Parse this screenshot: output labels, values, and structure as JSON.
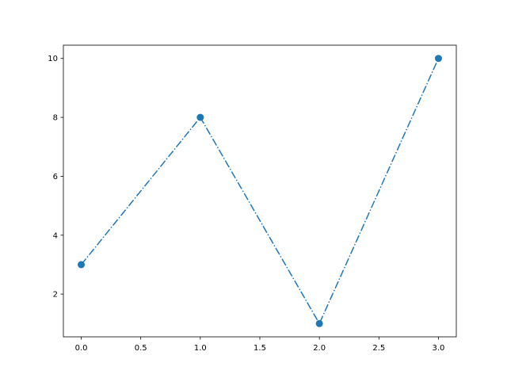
{
  "chart_data": {
    "type": "line",
    "title": "",
    "xlabel": "",
    "ylabel": "",
    "x": [
      0,
      1,
      2,
      3
    ],
    "series": [
      {
        "values": [
          3,
          8,
          1,
          10
        ],
        "color": "#1f77b4",
        "linestyle": "dashdot",
        "marker": "circle"
      }
    ],
    "xlim": [
      -0.15,
      3.15
    ],
    "ylim": [
      0.55,
      10.45
    ],
    "xticks": [
      0.0,
      0.5,
      1.0,
      1.5,
      2.0,
      2.5,
      3.0
    ],
    "xtick_labels": [
      "0.0",
      "0.5",
      "1.0",
      "1.5",
      "2.0",
      "2.5",
      "3.0"
    ],
    "yticks": [
      2,
      4,
      6,
      8,
      10
    ],
    "ytick_labels": [
      "2",
      "4",
      "6",
      "8",
      "10"
    ],
    "grid": false,
    "legend": "none"
  }
}
